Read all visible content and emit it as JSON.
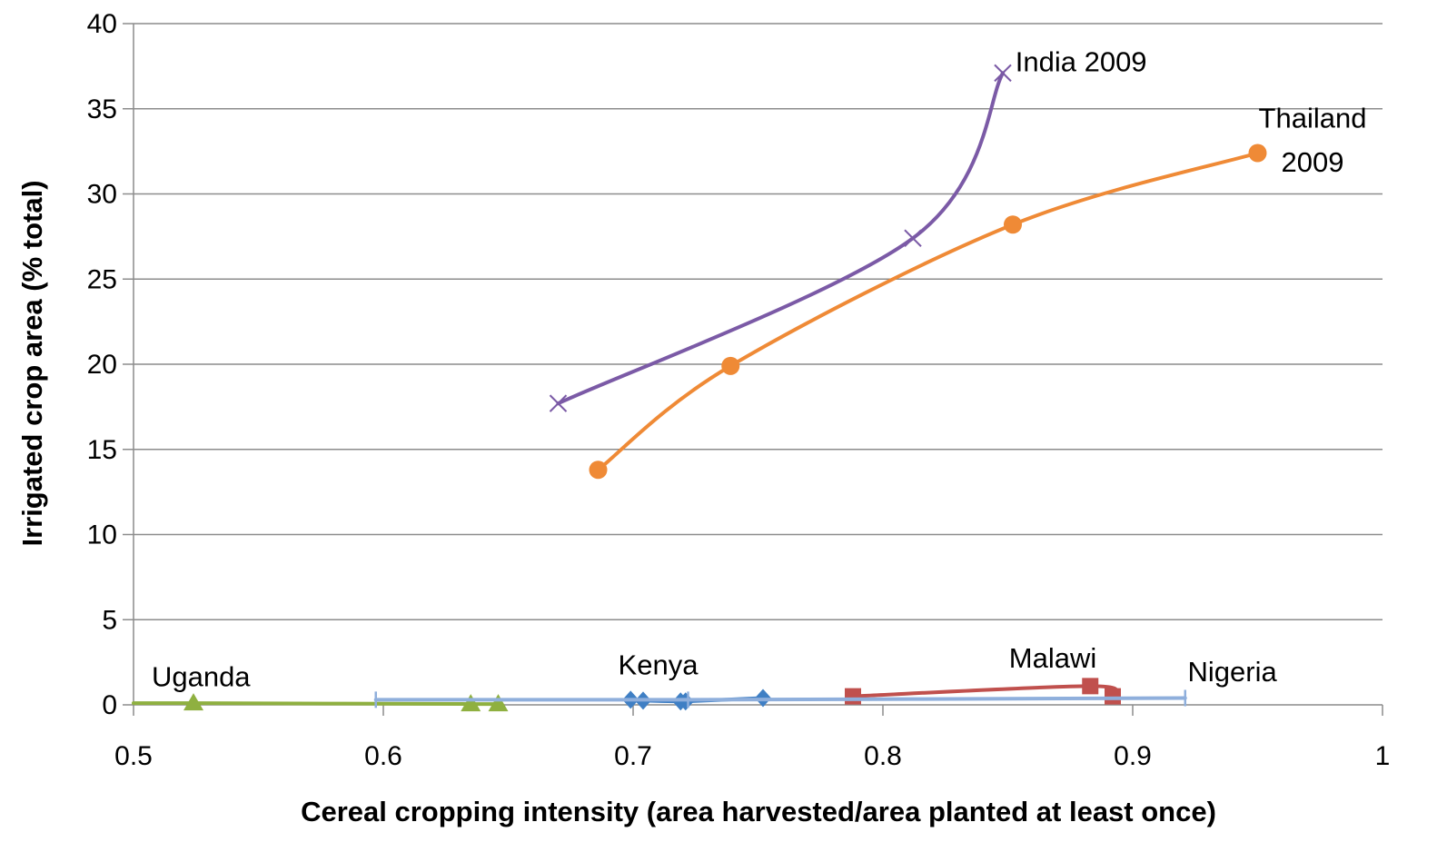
{
  "chart_data": {
    "type": "scatter",
    "title": "",
    "xlabel": "Cereal cropping intensity (area harvested/area planted at least once)",
    "ylabel": "Irrigated crop area (% total)",
    "xlim": [
      0.5,
      1
    ],
    "ylim": [
      0,
      40
    ],
    "x_ticks": [
      "0.5",
      "0.6",
      "0.7",
      "0.8",
      "0.9",
      "1"
    ],
    "y_ticks": [
      "0",
      "5",
      "10",
      "15",
      "20",
      "25",
      "30",
      "35",
      "40"
    ],
    "grid": "horizontal",
    "smooth_lines": true,
    "series": [
      {
        "label": "India 2009",
        "color": "#7b5aa6",
        "marker": "x",
        "points": [
          [
            0.67,
            17.7
          ],
          [
            0.812,
            27.4
          ],
          [
            0.848,
            37.1
          ]
        ]
      },
      {
        "label": "Thailand 2009",
        "color": "#ef8a36",
        "marker": "circle",
        "points": [
          [
            0.686,
            13.8
          ],
          [
            0.739,
            19.9
          ],
          [
            0.852,
            28.2
          ],
          [
            0.95,
            32.4
          ]
        ]
      },
      {
        "label": "Uganda",
        "color": "#8fb040",
        "marker": "triangle",
        "points": [
          [
            0.5,
            0.1
          ],
          [
            0.524,
            0.1
          ],
          [
            0.635,
            0.05
          ],
          [
            0.646,
            0.05
          ]
        ]
      },
      {
        "label": "Kenya",
        "color": "#3f7fc4",
        "marker": "diamond",
        "points": [
          [
            0.699,
            0.3
          ],
          [
            0.704,
            0.25
          ],
          [
            0.719,
            0.2
          ],
          [
            0.721,
            0.2
          ],
          [
            0.752,
            0.4
          ]
        ]
      },
      {
        "label": "Malawi",
        "color": "#c0504d",
        "marker": "square",
        "points": [
          [
            0.788,
            0.5
          ],
          [
            0.883,
            1.1
          ],
          [
            0.892,
            0.5
          ]
        ]
      },
      {
        "label": "Nigeria",
        "color": "#8fafdc",
        "marker": "dash",
        "points": [
          [
            0.597,
            0.3
          ],
          [
            0.722,
            0.3
          ],
          [
            0.921,
            0.4
          ]
        ]
      }
    ],
    "annotations": [
      {
        "text": "India 2009",
        "at": [
          0.853,
          37.2
        ],
        "anchor": "start"
      },
      {
        "text": "Thailand",
        "at": [
          0.972,
          33.9
        ],
        "anchor": "middle"
      },
      {
        "text": "2009",
        "at": [
          0.972,
          31.3
        ],
        "anchor": "middle"
      },
      {
        "text": "Uganda",
        "at": [
          0.527,
          1.1
        ],
        "anchor": "middle"
      },
      {
        "text": "Kenya",
        "at": [
          0.71,
          1.8
        ],
        "anchor": "middle"
      },
      {
        "text": "Malawi",
        "at": [
          0.868,
          2.2
        ],
        "anchor": "middle"
      },
      {
        "text": "Nigeria",
        "at": [
          0.922,
          1.4
        ],
        "anchor": "start"
      }
    ]
  }
}
